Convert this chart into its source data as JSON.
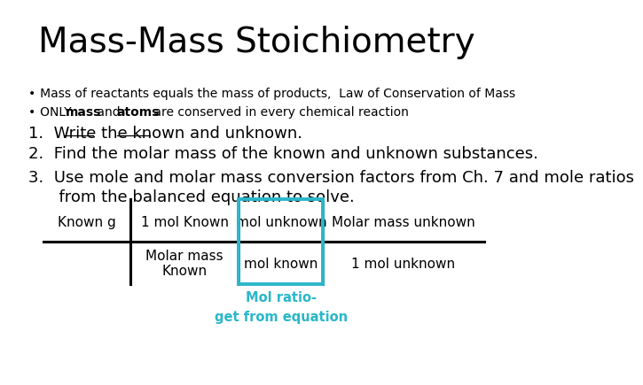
{
  "title": "Mass-Mass Stoichiometry",
  "title_fontsize": 28,
  "bg_color": "#ffffff",
  "bullet1": "   Mass of reactants equals the mass of products,  Law of Conservation of Mass",
  "bullet1_dot": "•",
  "bullet2_prefix": "   ONLY ",
  "bullet2_mass": "mass",
  "bullet2_mid": " and ",
  "bullet2_atoms": "atoms",
  "bullet2_suffix": " are conserved in every chemical reaction",
  "bullet2_dot": "•",
  "step1": "1.  Write the known and unknown.",
  "step2": "2.  Find the molar mass of the known and unknown substances.",
  "step3a": "3.  Use mole and molar mass conversion factors from Ch. 7 and mole ratios",
  "step3b": "      from the balanced equation to solve.",
  "cell_top_left": "Known g",
  "cell_top_mid": "1 mol Known",
  "cell_top_right_highlight": "mol unknown",
  "cell_top_far_right": "Molar mass unknown",
  "cell_bot_mid": "Molar mass\nKnown",
  "cell_bot_right_highlight": "mol known",
  "cell_bot_far_right": "1 mol unknown",
  "highlight_label_line1": "Mol ratio-",
  "highlight_label_line2": "get from equation",
  "highlight_color": "#2ab7ca",
  "text_color": "#000000",
  "font_family": "sans-serif"
}
